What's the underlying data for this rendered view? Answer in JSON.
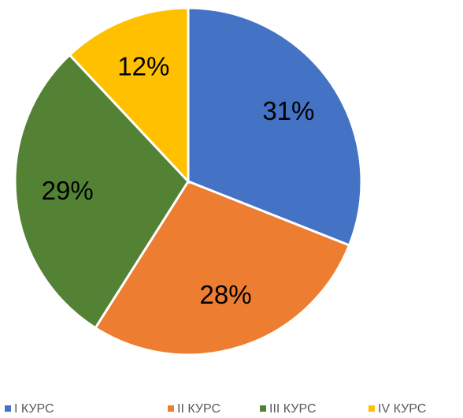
{
  "chart_data": {
    "type": "pie",
    "categories": [
      "I КУРС",
      "II КУРС",
      "III КУРС",
      "IV КУРС"
    ],
    "values": [
      31,
      28,
      29,
      12
    ],
    "value_labels": [
      "31%",
      "28%",
      "29%",
      "12%"
    ],
    "colors": [
      "#4472c4",
      "#ed7d31",
      "#548235",
      "#ffc000"
    ],
    "legend": "bottom"
  }
}
